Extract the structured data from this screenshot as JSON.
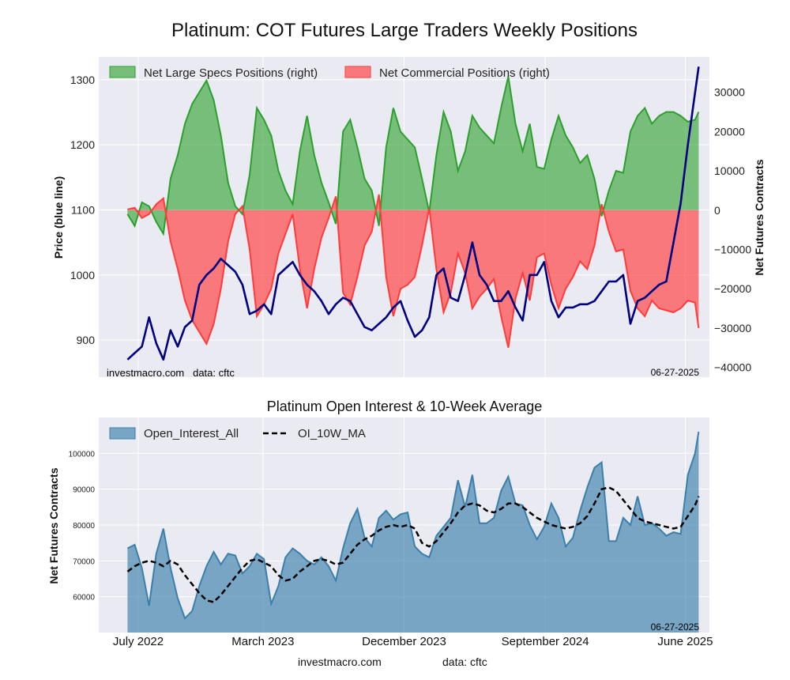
{
  "title": "Platinum: COT Futures Large Traders Weekly Positions",
  "footer": {
    "site": "investmacro.com",
    "source": "data: cftc"
  },
  "x_ticks": [
    "July 2022",
    "March 2023",
    "December 2023",
    "September 2024",
    "June 2025"
  ],
  "colors": {
    "price": "#000080",
    "specs": "#2ca02c",
    "commercial": "#ff3b3b",
    "oi": "#3b7fab",
    "ma": "#000000",
    "plot_bg": "#eaeaf2"
  },
  "chart_data": [
    {
      "type": "line",
      "title": "",
      "ylabel_left": "Price (blue line)",
      "ylabel_right": "Net Futures Contracts",
      "ylim_left": [
        843,
        1335
      ],
      "ylim_right": [
        -42500,
        39000
      ],
      "y_ticks_left": [
        900,
        1000,
        1100,
        1200,
        1300
      ],
      "y_ticks_right": [
        -40000,
        -30000,
        -20000,
        -10000,
        0,
        10000,
        20000,
        30000
      ],
      "legend": [
        "Net Large Specs Positions (right)",
        "Net Commercial Positions (right)"
      ],
      "legend_position": "top-left",
      "annotations": {
        "left": "investmacro.com   data: cftc",
        "right": "06-27-2025"
      },
      "grid": true,
      "x": [
        "2022-06-10",
        "2022-06-24",
        "2022-07-08",
        "2022-07-22",
        "2022-08-05",
        "2022-08-19",
        "2022-09-02",
        "2022-09-16",
        "2022-09-30",
        "2022-10-14",
        "2022-10-28",
        "2022-11-11",
        "2022-11-25",
        "2022-12-09",
        "2022-12-23",
        "2023-01-06",
        "2023-01-20",
        "2023-02-03",
        "2023-02-17",
        "2023-03-03",
        "2023-03-17",
        "2023-03-31",
        "2023-04-14",
        "2023-04-28",
        "2023-05-12",
        "2023-05-26",
        "2023-06-09",
        "2023-06-23",
        "2023-07-07",
        "2023-07-21",
        "2023-08-04",
        "2023-08-18",
        "2023-09-01",
        "2023-09-15",
        "2023-09-29",
        "2023-10-13",
        "2023-10-27",
        "2023-11-10",
        "2023-11-24",
        "2023-12-08",
        "2023-12-22",
        "2024-01-05",
        "2024-01-19",
        "2024-02-02",
        "2024-02-16",
        "2024-03-01",
        "2024-03-15",
        "2024-03-29",
        "2024-04-12",
        "2024-04-26",
        "2024-05-10",
        "2024-05-24",
        "2024-06-07",
        "2024-06-21",
        "2024-07-05",
        "2024-07-19",
        "2024-08-02",
        "2024-08-16",
        "2024-08-30",
        "2024-09-13",
        "2024-09-27",
        "2024-10-11",
        "2024-10-25",
        "2024-11-08",
        "2024-11-22",
        "2024-12-06",
        "2024-12-20",
        "2025-01-03",
        "2025-01-17",
        "2025-01-31",
        "2025-02-14",
        "2025-02-28",
        "2025-03-14",
        "2025-03-28",
        "2025-04-11",
        "2025-04-25",
        "2025-05-09",
        "2025-05-23",
        "2025-06-06",
        "2025-06-20",
        "2025-06-27"
      ],
      "series": [
        {
          "name": "Price",
          "axis": "left",
          "values": [
            870,
            880,
            890,
            935,
            895,
            870,
            915,
            890,
            920,
            930,
            985,
            1000,
            1010,
            1025,
            1015,
            1005,
            985,
            940,
            945,
            955,
            940,
            1000,
            1010,
            1020,
            1000,
            985,
            975,
            960,
            940,
            955,
            965,
            960,
            940,
            920,
            915,
            925,
            935,
            950,
            960,
            930,
            905,
            915,
            935,
            1000,
            1010,
            965,
            960,
            1000,
            1050,
            1000,
            985,
            960,
            960,
            975,
            950,
            930,
            1000,
            1000,
            1020,
            960,
            935,
            950,
            950,
            955,
            955,
            960,
            975,
            990,
            990,
            1000,
            925,
            960,
            965,
            975,
            985,
            990,
            1050,
            1110,
            1200,
            1280,
            1320
          ]
        },
        {
          "name": "Net Large Specs Positions (right)",
          "axis": "right",
          "values": [
            -1000,
            -4000,
            2000,
            1000,
            -3000,
            -6000,
            8000,
            14000,
            22000,
            27000,
            30000,
            33000,
            28000,
            19000,
            7000,
            1000,
            -1000,
            9000,
            26000,
            23000,
            19000,
            10000,
            5000,
            1500,
            15000,
            24000,
            14000,
            7000,
            2000,
            -3500,
            20000,
            23000,
            16000,
            8000,
            5000,
            -4000,
            16000,
            26000,
            20000,
            18000,
            16000,
            8000,
            -500,
            14000,
            25000,
            20000,
            10000,
            15000,
            24000,
            21000,
            19000,
            17000,
            26000,
            34000,
            22000,
            15000,
            22000,
            11000,
            10500,
            18000,
            24000,
            19000,
            16000,
            12000,
            14000,
            8000,
            -1500,
            5000,
            10000,
            9500,
            20000,
            24000,
            26000,
            22000,
            24000,
            25000,
            25000,
            24000,
            22500,
            23000,
            25000
          ]
        },
        {
          "name": "Net Commercial Positions (right)",
          "axis": "right",
          "values": [
            200,
            600,
            -2000,
            -1000,
            1500,
            3000,
            -8000,
            -15000,
            -23000,
            -28000,
            -31000,
            -34000,
            -29000,
            -20000,
            -8000,
            -1000,
            1000,
            -10000,
            -27000,
            -24000,
            -20000,
            -11000,
            -6000,
            -1000,
            -15000,
            -25000,
            -15000,
            -7000,
            -2000,
            3500,
            -21000,
            -24000,
            -17000,
            -9000,
            -5500,
            4000,
            -17000,
            -27000,
            -20000,
            -19000,
            -17000,
            -9000,
            500,
            -15000,
            -26000,
            -21000,
            -11000,
            -16000,
            -25000,
            -22000,
            -20000,
            -17500,
            -27000,
            -35000,
            -22500,
            -16000,
            -23000,
            -12000,
            -11000,
            -19000,
            -25000,
            -20000,
            -17000,
            -13000,
            -15000,
            -9000,
            1500,
            -5500,
            -10500,
            -10000,
            -20500,
            -25000,
            -27000,
            -23000,
            -25000,
            -25500,
            -26000,
            -25000,
            -23000,
            -23500,
            -30000
          ]
        }
      ]
    },
    {
      "type": "area",
      "title": "Platinum Open Interest & 10-Week Average",
      "ylabel": "Net Futures Contracts",
      "ylim": [
        50000,
        110000
      ],
      "y_ticks": [
        60000,
        70000,
        80000,
        90000,
        100000
      ],
      "legend": [
        "Open_Interest_All",
        "OI_10W_MA"
      ],
      "legend_position": "top-left",
      "annotation": "06-27-2025",
      "grid": true,
      "x": [
        "2022-06-10",
        "2022-06-24",
        "2022-07-08",
        "2022-07-22",
        "2022-08-05",
        "2022-08-19",
        "2022-09-02",
        "2022-09-16",
        "2022-09-30",
        "2022-10-14",
        "2022-10-28",
        "2022-11-11",
        "2022-11-25",
        "2022-12-09",
        "2022-12-23",
        "2023-01-06",
        "2023-01-20",
        "2023-02-03",
        "2023-02-17",
        "2023-03-03",
        "2023-03-17",
        "2023-03-31",
        "2023-04-14",
        "2023-04-28",
        "2023-05-12",
        "2023-05-26",
        "2023-06-09",
        "2023-06-23",
        "2023-07-07",
        "2023-07-21",
        "2023-08-04",
        "2023-08-18",
        "2023-09-01",
        "2023-09-15",
        "2023-09-29",
        "2023-10-13",
        "2023-10-27",
        "2023-11-10",
        "2023-11-24",
        "2023-12-08",
        "2023-12-22",
        "2024-01-05",
        "2024-01-19",
        "2024-02-02",
        "2024-02-16",
        "2024-03-01",
        "2024-03-15",
        "2024-03-29",
        "2024-04-12",
        "2024-04-26",
        "2024-05-10",
        "2024-05-24",
        "2024-06-07",
        "2024-06-21",
        "2024-07-05",
        "2024-07-19",
        "2024-08-02",
        "2024-08-16",
        "2024-08-30",
        "2024-09-13",
        "2024-09-27",
        "2024-10-11",
        "2024-10-25",
        "2024-11-08",
        "2024-11-22",
        "2024-12-06",
        "2024-12-20",
        "2025-01-03",
        "2025-01-17",
        "2025-01-31",
        "2025-02-14",
        "2025-02-28",
        "2025-03-14",
        "2025-03-28",
        "2025-04-11",
        "2025-04-25",
        "2025-05-09",
        "2025-05-23",
        "2025-06-06",
        "2025-06-20",
        "2025-06-27"
      ],
      "series": [
        {
          "name": "Open_Interest_All",
          "values": [
            73500,
            74500,
            68000,
            57500,
            72000,
            79000,
            68000,
            59500,
            54000,
            56000,
            63000,
            68500,
            72500,
            69000,
            72000,
            71500,
            66500,
            68500,
            72000,
            70500,
            58000,
            63000,
            71000,
            73500,
            72000,
            70000,
            69000,
            71000,
            68500,
            64500,
            73500,
            80500,
            84500,
            76500,
            74000,
            82000,
            84000,
            81500,
            83000,
            83500,
            74000,
            72000,
            71000,
            77000,
            79500,
            82000,
            92500,
            85000,
            94000,
            80500,
            80500,
            82000,
            89500,
            93500,
            86000,
            85500,
            80000,
            76000,
            79500,
            86000,
            82000,
            74000,
            76500,
            84000,
            90500,
            96000,
            97500,
            75500,
            75500,
            82000,
            80000,
            88000,
            80000,
            80500,
            79000,
            77000,
            78000,
            77500,
            94000,
            100000,
            106000
          ]
        },
        {
          "name": "OI_10W_MA",
          "values": [
            67000,
            68500,
            69500,
            70000,
            69500,
            68500,
            70000,
            69000,
            66000,
            63500,
            61000,
            59000,
            58500,
            60500,
            63000,
            65500,
            68000,
            70000,
            70500,
            69500,
            68500,
            66000,
            64500,
            65000,
            67000,
            68500,
            70000,
            70500,
            70000,
            69000,
            69500,
            72000,
            74500,
            76000,
            77000,
            78500,
            79500,
            80000,
            79500,
            80000,
            79000,
            75000,
            74000,
            75500,
            78000,
            80500,
            83500,
            85500,
            86000,
            85500,
            84000,
            83500,
            84500,
            86000,
            86000,
            85000,
            83500,
            82000,
            81000,
            80000,
            79500,
            79000,
            79500,
            80500,
            82500,
            86000,
            90000,
            90500,
            89500,
            87000,
            84500,
            82000,
            81000,
            80500,
            80000,
            79500,
            79000,
            79500,
            82500,
            85500,
            88000
          ]
        }
      ]
    }
  ]
}
